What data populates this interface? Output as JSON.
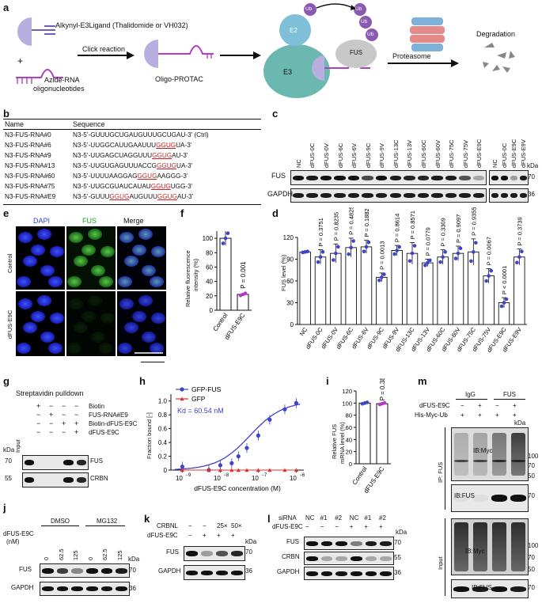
{
  "panels": {
    "a": {
      "letter": "a",
      "ligand_label": "Alkynyl-E3Ligand (Thalidomide or VH032)",
      "plus": "+",
      "azide_label_1": "Azide-RNA",
      "azide_label_2": "oligonucleotides",
      "click_label": "Click reaction",
      "product_label": "Oligo-PROTAC",
      "e2": "E2",
      "e3": "E3",
      "ub": "Ub",
      "fus": "FUS",
      "proteasome": "Proteasome",
      "degradation": "Degradation"
    },
    "b": {
      "letter": "b",
      "col_name": "Name",
      "col_seq": "Sequence",
      "rows": [
        {
          "name": "N3-FUS-RNA#0",
          "pre": "N3-5’-GUUUGCUGAUGUUUGCUGAU-3’ (Ctrl)",
          "red": "",
          "post": ""
        },
        {
          "name": "N3-FUS-RNA#6",
          "pre": "N3-5’-UUGGCAUUGAAUUU",
          "red": "GGUG",
          "post": "UA-3’"
        },
        {
          "name": "N3-FUS-RNA#9",
          "pre": "N3-5’-UUGAGCUAGGUUU",
          "red": "GGUG",
          "post": "AU-3’"
        },
        {
          "name": "N3-FUS-RNA#13",
          "pre": "N3-5’-UUGUGAGUUUACCG",
          "red": "GGUG",
          "post": "UA-3’"
        },
        {
          "name": "N3-FUS-RNA#60",
          "pre": "N3-5’-UUUUAAGGAG",
          "red": "GGUG",
          "post": "AAGGG-3’"
        },
        {
          "name": "N3-FUS-RNA#75",
          "pre": "N3-5’-UUGCGUAUCAUAU",
          "red": "GGUG",
          "post": "UGG-3’"
        },
        {
          "name": "N3-FUS-RNA#E9",
          "pre": "N3-5’-GUUU",
          "red": "GGUG",
          "post": "AUGUUU",
          "red2": "GGUG",
          "post2": "AU-3’"
        }
      ]
    },
    "c": {
      "letter": "c",
      "lanes_left": [
        "NC",
        "dFUS-0C",
        "dFUS-0V",
        "dFUS-6C",
        "dFUS-6V",
        "dFUS-9C",
        "dFUS-9V",
        "dFUS-13C",
        "dFUS-13V",
        "dFUS-60C",
        "dFUS-60V",
        "dFUS-75C",
        "dFUS-75V",
        "dFUS-E9C"
      ],
      "lanes_right": [
        "NC",
        "dFUS-0C",
        "dFUS-E9C",
        "dFUS-E9V"
      ],
      "row_labels": [
        "FUS",
        "GAPDH"
      ],
      "kda": "kDa",
      "markers": [
        "70",
        "36"
      ]
    },
    "d": {
      "letter": "d",
      "ylabel": "FUS level (%)",
      "yticks": [
        "0",
        "30",
        "60",
        "90",
        "120"
      ],
      "categories": [
        "NC",
        "dFUS-0C",
        "dFUS-0V",
        "dFUS-6C",
        "dFUS-6V",
        "dFUS-9C",
        "dFUS-9V",
        "dFUS-13C",
        "dFUS-13V",
        "dFUS-60C",
        "dFUS-60V",
        "dFUS-75C",
        "dFUS-75V",
        "dFUS-E9C",
        "dFUS-E9V"
      ],
      "pvalues": [
        "",
        "P = 0.3751",
        "P = 0.8235",
        "P = 0.4825",
        "P = 0.1882",
        "P = 0.0013",
        "P = 0.8614",
        "P = 0.8571",
        "P = 0.0779",
        "P = 0.3309",
        "P = 0.9097",
        "P = 0.9355",
        "P = 0.0067",
        "P < 0.0001",
        "P = 0.3739"
      ]
    },
    "e": {
      "letter": "e",
      "cols": [
        "DAPI",
        "FUS",
        "Merge"
      ],
      "rows": [
        "Control",
        "dFUS-E9C"
      ]
    },
    "f": {
      "letter": "f",
      "ylabel_1": "Relative fluorescence",
      "ylabel_2": "intensity (%)",
      "yticks": [
        "0",
        "20",
        "40",
        "60",
        "80",
        "100"
      ],
      "categories": [
        "Control",
        "dFUS-E9C"
      ],
      "pvalue": "P = 0.001"
    },
    "g": {
      "letter": "g",
      "title": "Streptavidin pulldown",
      "conditions": [
        "Biotin",
        "FUS-RNA#E9",
        "Biotin-dFUS-E9C",
        "dFUS-E9C"
      ],
      "signs": [
        [
          "+",
          "−",
          "−",
          "−"
        ],
        [
          "−",
          "+",
          "−",
          "−"
        ],
        [
          "−",
          "−",
          "+",
          "+"
        ],
        [
          "−",
          "−",
          "−",
          "+"
        ]
      ],
      "input": "Input",
      "kda": "kDa",
      "markers": [
        "70",
        "55"
      ],
      "row_labels": [
        "FUS",
        "CRBN"
      ]
    },
    "h": {
      "letter": "h",
      "legend": [
        "GFP-FUS",
        "GFP"
      ],
      "kd": "Kd = 60.54 nM",
      "ylabel": "Fraction bound [-]",
      "xlabel": "dFUS-E9C concentration (M)",
      "yticks": [
        "0",
        "0.2",
        "0.4",
        "0.6",
        "0.8",
        "1.0"
      ],
      "xticks": [
        "10",
        "10",
        "10",
        "10"
      ],
      "xexp": [
        "−9",
        "−8",
        "−7",
        "−6"
      ]
    },
    "i": {
      "letter": "i",
      "ylabel_1": "Relative FUS",
      "ylabel_2": "mRNA level (%)",
      "yticks": [
        "0",
        "20",
        "40",
        "60",
        "80",
        "100",
        "120"
      ],
      "categories": [
        "Control",
        "dFUS-E9C"
      ],
      "pvalue": "P = 0.3855"
    },
    "j": {
      "letter": "j",
      "groups": [
        "DMSO",
        "MG132"
      ],
      "row_title_1": "dFUS-E9C",
      "row_title_2": "(nM)",
      "doses": [
        "0",
        "62.5",
        "125",
        "0",
        "62.5",
        "125"
      ],
      "row_labels": [
        "FUS",
        "GAPDH"
      ],
      "kda": "kDa",
      "markers": [
        "70",
        "36"
      ]
    },
    "k": {
      "letter": "k",
      "rows": [
        "CRBNL",
        "dFUS-E9C"
      ],
      "signs": [
        [
          "−",
          "−",
          "25×",
          "50×"
        ],
        [
          "−",
          "+",
          "+",
          "+"
        ]
      ],
      "row_labels": [
        "FUS",
        "GAPDH"
      ],
      "kda": "kDa",
      "markers": [
        "70",
        "36"
      ]
    },
    "l": {
      "letter": "l",
      "rows": [
        "siRNA",
        "dFUS-E9C"
      ],
      "signs": [
        [
          "NC",
          "#1",
          "#2",
          "NC",
          "#1",
          "#2"
        ],
        [
          "−",
          "−",
          "−",
          "+",
          "+",
          "+"
        ]
      ],
      "row_labels": [
        "FUS",
        "CRBN",
        "GAPDH"
      ],
      "kda": "kDa",
      "markers": [
        "70",
        "55",
        "36"
      ]
    },
    "m": {
      "letter": "m",
      "groups": [
        "IgG",
        "FUS"
      ],
      "rows": [
        "dFUS-E9C",
        "His-Myc-Ub"
      ],
      "signs": [
        [
          "−",
          "+",
          "−",
          "+"
        ],
        [
          "+",
          "+",
          "+",
          "+"
        ]
      ],
      "kda": "kDa",
      "ip_label": "IP: FUS",
      "input_label": "Input",
      "blot_labels": [
        "IB:Myc",
        "IB:FUS",
        "IB:Myc",
        "IB:FUS"
      ],
      "markers_ip": [
        "100",
        "70",
        "50"
      ],
      "marker_fus": "70",
      "markers_input": [
        "100",
        "70",
        "50"
      ],
      "marker_input_fus": "70"
    }
  },
  "chart_data": [
    {
      "panel": "d",
      "type": "bar",
      "categories": [
        "NC",
        "dFUS-0C",
        "dFUS-0V",
        "dFUS-6C",
        "dFUS-6V",
        "dFUS-9C",
        "dFUS-9V",
        "dFUS-13C",
        "dFUS-13V",
        "dFUS-60C",
        "dFUS-60V",
        "dFUS-75C",
        "dFUS-75V",
        "dFUS-E9C",
        "dFUS-E9V"
      ],
      "values": [
        100,
        93,
        98,
        106,
        107,
        65,
        102,
        98,
        85,
        93,
        98,
        100,
        67,
        30,
        93
      ],
      "errors": [
        1,
        10,
        13,
        13,
        9,
        6,
        7,
        15,
        5,
        10,
        10,
        18,
        10,
        7,
        11
      ],
      "ylabel": "FUS level (%)",
      "ylim": [
        0,
        120
      ]
    },
    {
      "panel": "f",
      "type": "bar",
      "categories": [
        "Control",
        "dFUS-E9C"
      ],
      "values": [
        100,
        22
      ],
      "errors": [
        10,
        2
      ],
      "ylim": [
        0,
        110
      ]
    },
    {
      "panel": "h",
      "type": "scatter",
      "series": [
        {
          "name": "GFP-FUS",
          "x": [
            1e-09,
            5e-09,
            1e-08,
            2e-08,
            3e-08,
            5e-08,
            1e-07,
            2e-07,
            5e-07,
            1e-06
          ],
          "y": [
            0.05,
            0.0,
            0.07,
            0.1,
            0.2,
            0.32,
            0.5,
            0.73,
            0.88,
            0.97
          ]
        },
        {
          "name": "GFP",
          "x": [
            1e-09,
            5e-09,
            1e-08,
            2e-08,
            3e-08,
            5e-08,
            1e-07,
            2e-07,
            5e-07,
            1e-06
          ],
          "y": [
            0,
            0,
            0,
            0,
            0,
            0,
            0,
            0,
            0,
            0
          ]
        }
      ],
      "xlabel": "dFUS-E9C concentration (M)",
      "ylabel": "Fraction bound [-]",
      "ylim": [
        0,
        1.1
      ],
      "xscale": "log"
    },
    {
      "panel": "i",
      "type": "bar",
      "categories": [
        "Control",
        "dFUS-E9C"
      ],
      "values": [
        100,
        99
      ],
      "errors": [
        2,
        2
      ],
      "ylim": [
        0,
        120
      ]
    }
  ]
}
